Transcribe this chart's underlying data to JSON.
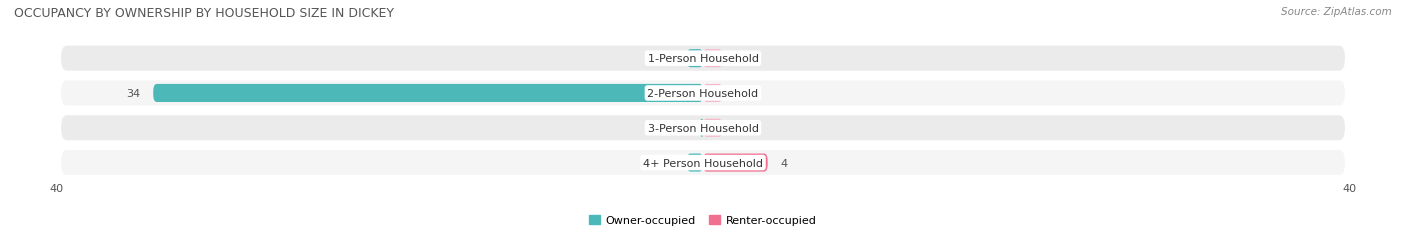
{
  "title": "OCCUPANCY BY OWNERSHIP BY HOUSEHOLD SIZE IN DICKEY",
  "source": "Source: ZipAtlas.com",
  "categories": [
    "1-Person Household",
    "2-Person Household",
    "3-Person Household",
    "4+ Person Household"
  ],
  "owner_values": [
    1,
    34,
    0,
    1
  ],
  "renter_values": [
    0,
    0,
    0,
    4
  ],
  "owner_color": "#4db8b8",
  "renter_color": "#f07090",
  "renter_color_light": "#f5b8c8",
  "row_bg_even": "#ebebeb",
  "row_bg_odd": "#f5f5f5",
  "xlim": 40,
  "legend_labels": [
    "Owner-occupied",
    "Renter-occupied"
  ],
  "figsize": [
    14.06,
    2.32
  ],
  "dpi": 100,
  "title_fontsize": 9,
  "label_fontsize": 8,
  "value_fontsize": 8
}
